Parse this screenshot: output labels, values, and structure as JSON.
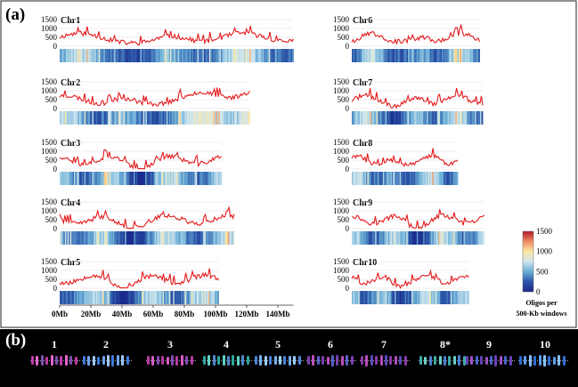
{
  "panel_a": {
    "label": "(a)",
    "y_ticks": [
      "0",
      "500",
      "1000",
      "1500"
    ],
    "x_axis_ticks": [
      "0Mb",
      "20Mb",
      "40Mb",
      "60Mb",
      "80Mb",
      "100Mb",
      "120Mb",
      "140Mb"
    ],
    "chromosomes": [
      {
        "id": "Chr1",
        "length_mb": 150
      },
      {
        "id": "Chr2",
        "length_mb": 122
      },
      {
        "id": "Chr3",
        "length_mb": 104
      },
      {
        "id": "Chr4",
        "length_mb": 112
      },
      {
        "id": "Chr5",
        "length_mb": 102
      },
      {
        "id": "Chr6",
        "length_mb": 82
      },
      {
        "id": "Chr7",
        "length_mb": 84
      },
      {
        "id": "Chr8",
        "length_mb": 68
      },
      {
        "id": "Chr9",
        "length_mb": 85
      },
      {
        "id": "Chr10",
        "length_mb": 75
      }
    ],
    "colorbar": {
      "ticks": [
        "1500",
        "1000",
        "500",
        "0"
      ],
      "title_line1": "Oligos per",
      "title_line2": "500-Kb windows",
      "colors": [
        "#b2182b",
        "#ef8a62",
        "#fbe8a3",
        "#cfe6ef",
        "#6baed6",
        "#2c55a8",
        "#1a2a8c"
      ]
    },
    "line_color": "#e31a1c"
  },
  "panel_b": {
    "label": "(b)",
    "chromosome_labels": [
      "1",
      "2",
      "3",
      "4",
      "5",
      "6",
      "7",
      "8*",
      "9",
      "10"
    ]
  }
}
